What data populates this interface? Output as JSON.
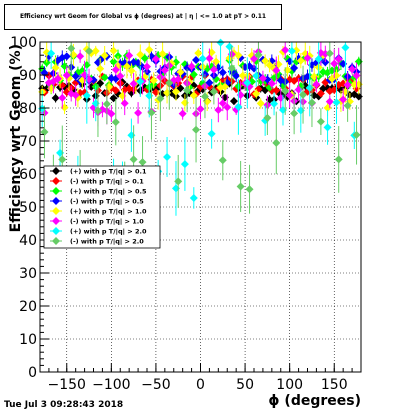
{
  "header": {
    "title": "Efficiency wrt Geom for Global vs ϕ (degrees) at | η | <= 1.0 at pT > 0.11"
  },
  "footer": {
    "timestamp": "Tue Jul  3 09:28:43 2018"
  },
  "chart_data": {
    "type": "scatter",
    "title": "Efficiency wrt Geom for Global vs ϕ (degrees) at | η | <= 1.0 at pT > 0.11",
    "xlabel": "ϕ (degrees)",
    "ylabel": "Efficiency wrt Geom (%)",
    "xlim": [
      -180,
      180
    ],
    "ylim": [
      0,
      100
    ],
    "grid": true,
    "legend_position": "upper-left",
    "x_ticks": [
      -150,
      -100,
      -50,
      0,
      50,
      100,
      150
    ],
    "x_tick_labels": [
      "−150",
      "−100",
      "−50",
      "0",
      "50",
      "100",
      "150"
    ],
    "y_ticks": [
      0,
      10,
      20,
      30,
      40,
      50,
      60,
      70,
      80,
      90,
      100
    ],
    "y_tick_labels": [
      "0",
      "10",
      "20",
      "30",
      "40",
      "50",
      "60",
      "70",
      "80",
      "90",
      "100"
    ],
    "series": [
      {
        "name": "(+) with p T/|q| > 0.1",
        "color": "#000000",
        "y_min": 82,
        "y_max": 88,
        "err": 1
      },
      {
        "name": "(-) with p T/|q| > 0.1",
        "color": "#ff0000",
        "y_min": 84,
        "y_max": 90,
        "err": 1
      },
      {
        "name": "(+) with p T/|q| > 0.5",
        "color": "#00ff00",
        "y_min": 86,
        "y_max": 96,
        "err": 1.5
      },
      {
        "name": "(-) with p T/|q| > 0.5",
        "color": "#0000ff",
        "y_min": 87,
        "y_max": 96,
        "err": 1.5
      },
      {
        "name": "(+) with p T/|q| > 1.0",
        "color": "#ffff00",
        "y_min": 80,
        "y_max": 98,
        "err": 2.5
      },
      {
        "name": "(-) with p T/|q| > 1.0",
        "color": "#ff00ff",
        "y_min": 78,
        "y_max": 98,
        "err": 3
      },
      {
        "name": "(+) with p T/|q| > 2.0",
        "color": "#00ffff",
        "y_min": 52,
        "y_max": 100,
        "err": 6
      },
      {
        "name": "(-) with p T/|q| > 2.0",
        "color": "#66cc66",
        "y_min": 55,
        "y_max": 100,
        "err": 7
      }
    ]
  }
}
